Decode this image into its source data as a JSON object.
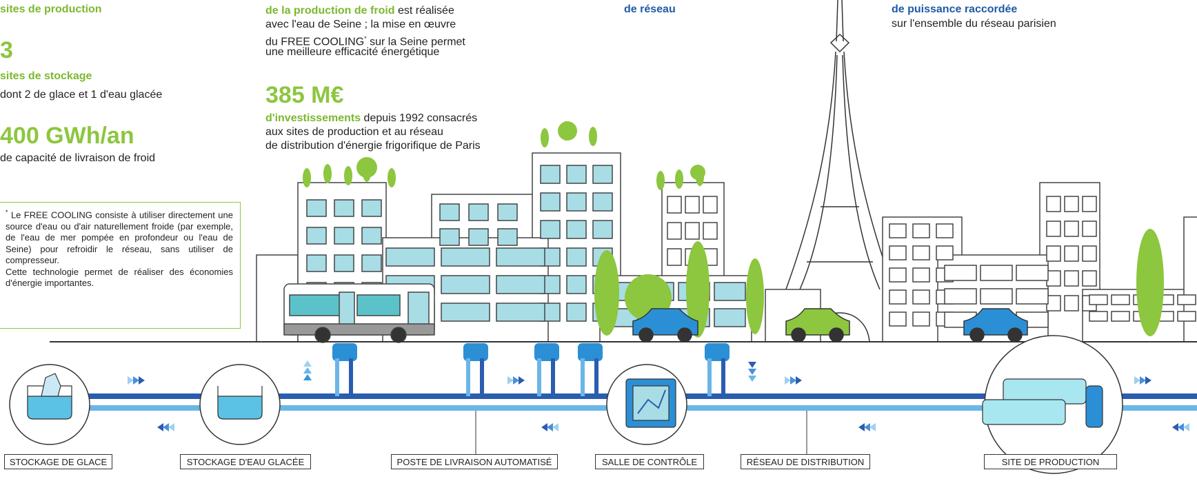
{
  "left": {
    "production_label": "sites de production",
    "storage_value": "3",
    "storage_label": "sites de stockage",
    "storage_detail": "dont 2 de glace et 1 d'eau glacée",
    "capacity_value": "400 GWh/an",
    "capacity_label": "de capacité de livraison de froid"
  },
  "middle": {
    "seine_highlight": "de la production de froid",
    "seine_line1": "est réalisée",
    "seine_line2": "avec l'eau de Seine ; la mise en œuvre",
    "seine_line3_before": "du FREE COOLING",
    "seine_line3_mark": "*",
    "seine_line3_after": "sur la Seine permet",
    "seine_line4": "une meilleure efficacité énergétique",
    "invest_value": "385 M€",
    "invest_highlight": "d'investissements",
    "invest_line1": "depuis 1992 consacrés",
    "invest_line2": "aux sites de production et au réseau",
    "invest_line3": "de distribution d'énergie frigorifique de Paris"
  },
  "network": {
    "label": "de réseau"
  },
  "power": {
    "label": "de puissance raccordée",
    "detail": "sur l'ensemble du réseau parisien"
  },
  "footnote": {
    "mark": "*",
    "text": "Le FREE COOLING consiste à utiliser directement une source d'eau ou d'air naturellement froide (par exemple, de l'eau de mer pompée en profondeur ou l'eau de Seine) pour refroidir le réseau, sans utiliser de compresseur.",
    "text2": "Cette technologie permet de réaliser des économies d'énergie importantes."
  },
  "labels": [
    "STOCKAGE DE GLACE",
    "STOCKAGE D'EAU GLACÉE",
    "POSTE DE LIVRAISON AUTOMATISÉ",
    "SALLE DE CONTRÔLE",
    "RÉSEAU DE DISTRIBUTION",
    "SITE DE PRODUCTION"
  ]
}
